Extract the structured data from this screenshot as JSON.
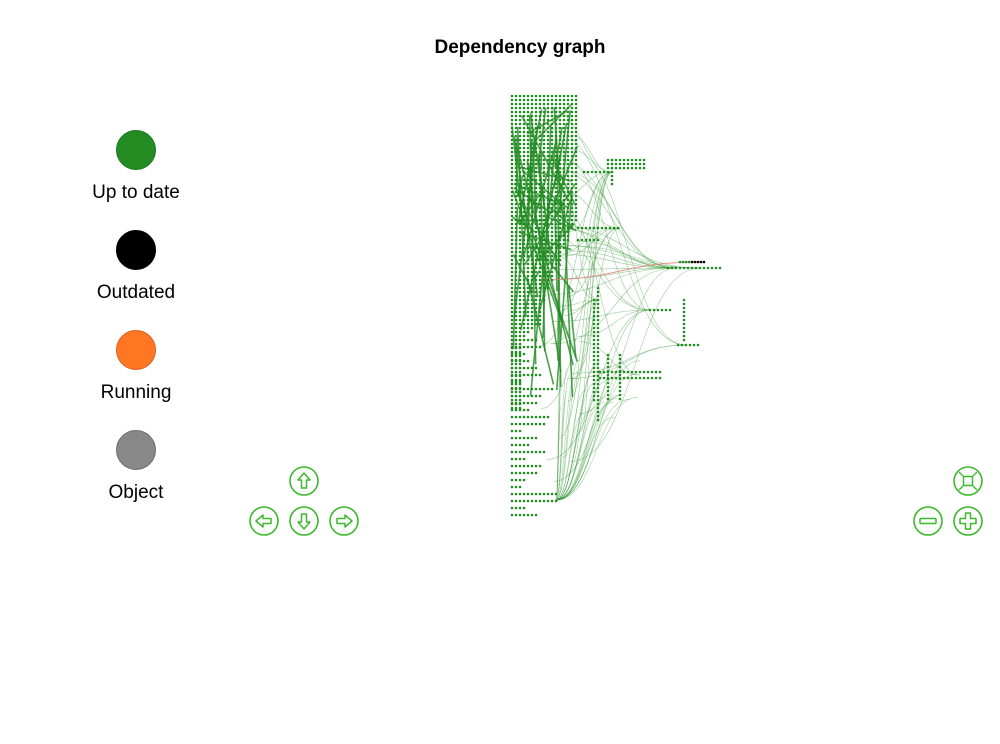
{
  "title": "Dependency graph",
  "legend": [
    {
      "label": "Up to date",
      "color": "#228B22",
      "border": "#1e7a1e"
    },
    {
      "label": "Outdated",
      "color": "#000000",
      "border": "#000000"
    },
    {
      "label": "Running",
      "color": "#FF7722",
      "border": "#d9601a"
    },
    {
      "label": "Object",
      "color": "#888888",
      "border": "#6f6f6f"
    }
  ],
  "colors": {
    "up_to_date": "#228B22",
    "outdated": "#000000",
    "edge_normal": "#228B22",
    "edge_outdated": "#e07b6a",
    "nav_accent": "#3cb82c"
  },
  "navigation": {
    "up": "arrow-up-icon",
    "down": "arrow-down-icon",
    "left": "arrow-left-icon",
    "right": "arrow-right-icon",
    "fit": "fit-view-icon",
    "zoom_out": "zoom-out-icon",
    "zoom_in": "zoom-in-icon"
  }
}
